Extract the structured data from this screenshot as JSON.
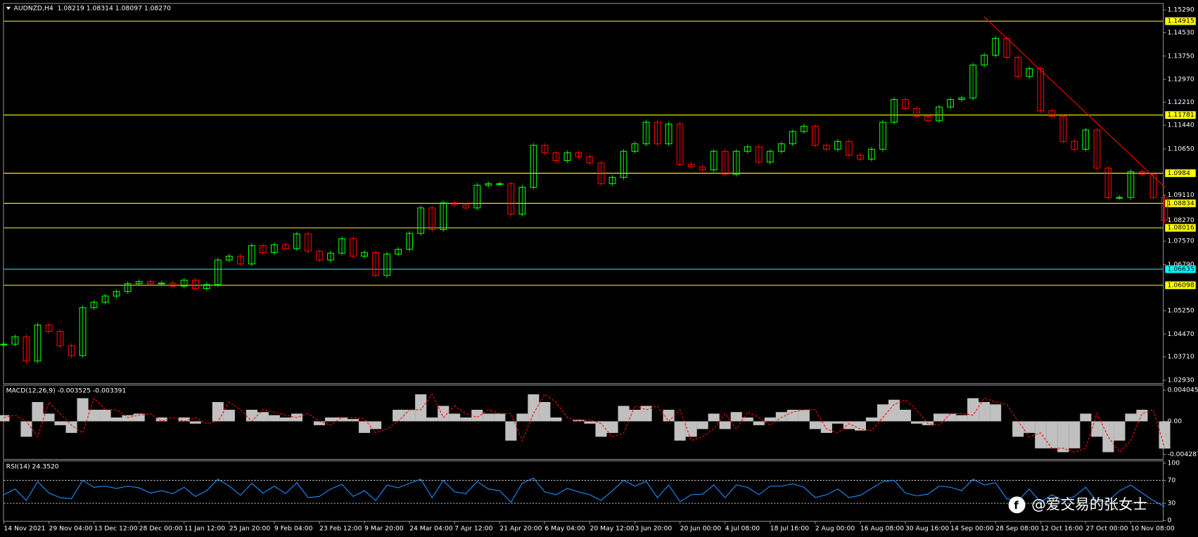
{
  "chart_data": [
    {
      "type": "candlestick",
      "title": "AUDNZD,H4  1.08219 1.08314 1.08097 1.08270",
      "up_color": "#00ff00",
      "down_color": "#ff0000",
      "categories": [
        "14 Nov 2021",
        null,
        null,
        null,
        "29 Nov 04:00",
        null,
        null,
        null,
        "13 Dec 12:00",
        null,
        null,
        null,
        "28 Dec 00:00",
        null,
        null,
        null,
        "11 Jan 12:00",
        null,
        null,
        null,
        "25 Jan 20:00",
        null,
        null,
        null,
        "9 Feb 04:00",
        null,
        null,
        null,
        "23 Feb 12:00",
        null,
        null,
        null,
        "9 Mar 20:00",
        null,
        null,
        null,
        "24 Mar 04:00",
        null,
        null,
        null,
        "7 Apr 12:00",
        null,
        null,
        null,
        "21 Apr 20:00",
        null,
        null,
        null,
        "6 May 04:00",
        null,
        null,
        null,
        "20 May 12:00",
        null,
        null,
        null,
        "3 Jun 20:00",
        null,
        null,
        null,
        "20 Jun 00:00",
        null,
        null,
        null,
        "4 Jul 08:00",
        null,
        null,
        null,
        "18 Jul 16:00",
        null,
        null,
        null,
        "2 Aug 00:00",
        null,
        null,
        null,
        "16 Aug 08:00",
        null,
        null,
        null,
        "30 Aug 16:00",
        null,
        null,
        null,
        "14 Sep 00:00",
        null,
        null,
        null,
        "28 Sep 08:00",
        null,
        null,
        null,
        "12 Oct 16:00",
        null,
        null,
        null,
        "27 Oct 00:00",
        null,
        null,
        null,
        "10 Nov 08:00",
        null,
        null,
        null
      ],
      "values": [
        1.0413,
        1.0438,
        1.0357,
        1.0477,
        1.0456,
        1.0408,
        1.0375,
        1.0535,
        1.0553,
        1.0574,
        1.0589,
        1.0615,
        1.0622,
        1.0615,
        1.0617,
        1.0607,
        1.0627,
        1.0599,
        1.0612,
        1.0694,
        1.0707,
        1.0681,
        1.0742,
        1.0719,
        1.0745,
        1.0732,
        1.0781,
        1.0724,
        1.0694,
        1.0717,
        1.0765,
        1.0707,
        1.0719,
        1.0643,
        1.0714,
        1.073,
        1.0783,
        1.0868,
        1.0796,
        1.0885,
        1.0878,
        1.0868,
        1.0944,
        1.0949,
        1.0949,
        1.0847,
        1.0937,
        1.1077,
        1.1052,
        1.1026,
        1.1052,
        1.1039,
        1.1018,
        1.0949,
        1.097,
        1.1057,
        1.1082,
        1.1154,
        1.1082,
        1.1148,
        1.1013,
        1.1005,
        1.0995,
        1.1057,
        1.098,
        1.1057,
        1.1072,
        1.1021,
        1.1057,
        1.1082,
        1.1123,
        1.1141,
        1.1077,
        1.1064,
        1.109,
        1.1044,
        1.1031,
        1.1064,
        1.1154,
        1.123,
        1.12,
        1.1174,
        1.1159,
        1.1205,
        1.123,
        1.1235,
        1.1345,
        1.1378,
        1.1434,
        1.1371,
        1.1307,
        1.1333,
        1.1192,
        1.1174,
        1.109,
        1.1064,
        1.1128,
        1.1001,
        1.0903,
        1.0903,
        1.0989,
        1.098,
        1.0903,
        1.0827
      ],
      "ylim": [
        1.02802,
        1.15494
      ],
      "yticks": [
        {
          "value": 1.1529,
          "label": "1.15290"
        },
        {
          "value": 1.1453,
          "label": "1.14530"
        },
        {
          "value": 1.1375,
          "label": "1.13750"
        },
        {
          "value": 1.1297,
          "label": "1.12970"
        },
        {
          "value": 1.1221,
          "label": "1.12210"
        },
        {
          "value": 1.1144,
          "label": "1.11440"
        },
        {
          "value": 1.1065,
          "label": "1.10650"
        },
        {
          "value": 1.0911,
          "label": "1.09110"
        },
        {
          "value": 1.0757,
          "label": "1.07570"
        },
        {
          "value": 1.0679,
          "label": "1.06790"
        },
        {
          "value": 1.0525,
          "label": "1.05250"
        },
        {
          "value": 1.0447,
          "label": "1.04470"
        },
        {
          "value": 1.0371,
          "label": "1.03710"
        },
        {
          "value": 1.0293,
          "label": "1.02930"
        }
      ],
      "current_price": {
        "value": 1.0827,
        "label": "1.08270"
      },
      "levels": [
        {
          "value": 1.14915,
          "color": "#ffff00"
        },
        {
          "value": 1.11781,
          "color": "#ffff00"
        },
        {
          "value": 1.0984,
          "color": "#ffff00"
        },
        {
          "value": 1.08834,
          "color": "#ffff00"
        },
        {
          "value": 1.08016,
          "color": "#ffff00"
        },
        {
          "value": 1.06635,
          "color": "#00ffff"
        },
        {
          "value": 1.06098,
          "color": "#ffff00"
        }
      ]
    },
    {
      "type": "bar",
      "title": "MACD(12,26,9) -0.003525 -0.003391",
      "color": "#c0c0c0",
      "signal_color": "#ff0000",
      "values": [
        0.0008,
        0,
        -0.002,
        0.0025,
        0.001,
        -0.0005,
        -0.0015,
        0.003,
        0.0015,
        0.0015,
        0.0005,
        0.0008,
        0.001,
        0,
        0.0005,
        0,
        0.0005,
        -0.0003,
        0,
        0.0025,
        0.0015,
        0,
        0.0015,
        0.0012,
        0.0008,
        0.0005,
        0.001,
        0,
        -0.0005,
        0.0005,
        0.0005,
        0.0003,
        -0.0015,
        -0.001,
        0,
        0.0015,
        0.0015,
        0.0035,
        0.0005,
        0.002,
        0.001,
        0.0005,
        0.0015,
        0.001,
        0.001,
        -0.0025,
        0.001,
        0.0035,
        0.0025,
        0.0005,
        0,
        0.0002,
        -0.0003,
        -0.002,
        -0.0015,
        0.002,
        0.0015,
        0.002,
        0,
        0.0015,
        -0.0025,
        -0.002,
        -0.001,
        0.001,
        -0.001,
        0.0012,
        0.0005,
        -0.0005,
        0.0005,
        0.0012,
        0.0015,
        0.0015,
        -0.001,
        -0.0015,
        -0.0003,
        -0.001,
        -0.0012,
        0.0005,
        0.0022,
        0.0028,
        0.0015,
        -0.0003,
        -0.0005,
        0.001,
        0.001,
        0.0008,
        0.003,
        0.0025,
        0.0022,
        0,
        -0.002,
        -0.0015,
        -0.0035,
        -0.0035,
        -0.004,
        -0.0035,
        0.001,
        -0.002,
        -0.004,
        -0.0025,
        0.001,
        0.0015,
        0,
        -0.003525
      ],
      "signal": [
        0.0005,
        0.0008,
        0,
        -0.002,
        0.0025,
        0.001,
        -0.0005,
        -0.0015,
        0.003,
        0.0015,
        0.0015,
        0.0005,
        0.0008,
        0.001,
        0,
        0.0005,
        0,
        0.0005,
        -0.0003,
        0,
        0.0025,
        0.0015,
        0,
        0.0015,
        0.0012,
        0.0008,
        0.0005,
        0.001,
        0,
        -0.0005,
        0.0005,
        0.0005,
        0.0003,
        -0.0015,
        -0.001,
        0,
        0.0015,
        0.0015,
        0.0035,
        0.0005,
        0.002,
        0.001,
        0.0005,
        0.0015,
        0.001,
        0.001,
        -0.0025,
        0.001,
        0.0035,
        0.0025,
        0.0005,
        0,
        0.0002,
        -0.0003,
        -0.002,
        -0.0015,
        0.002,
        0.0015,
        0.002,
        0,
        0.0015,
        -0.0025,
        -0.002,
        -0.001,
        0.001,
        -0.001,
        0.0012,
        0.0005,
        -0.0005,
        0.0005,
        0.0012,
        0.0015,
        0.0015,
        -0.001,
        -0.0015,
        -0.0003,
        -0.001,
        -0.0012,
        0.0005,
        0.0022,
        0.0028,
        0.0015,
        -0.0003,
        -0.0005,
        0.001,
        0.001,
        0.0008,
        0.003,
        0.0025,
        0.0022,
        0,
        -0.002,
        -0.0015,
        -0.0035,
        -0.0035,
        -0.004,
        -0.0035,
        0.001,
        -0.002,
        -0.004,
        -0.0025,
        0.001,
        0.0015,
        -0.003391
      ],
      "ylim": [
        -0.00488,
        0.00474
      ],
      "yticks": [
        0.004045,
        {
          "value": 0,
          "label": "0.00"
        },
        -0.004287
      ]
    },
    {
      "type": "line",
      "title": "RSI(14) 24.3520",
      "color": "#1e90ff",
      "values": [
        45,
        55,
        35,
        68,
        48,
        40,
        38,
        70,
        58,
        60,
        56,
        60,
        57,
        48,
        52,
        47,
        58,
        42,
        52,
        72,
        60,
        44,
        65,
        48,
        60,
        47,
        66,
        40,
        42,
        55,
        63,
        42,
        52,
        35,
        62,
        57,
        65,
        72,
        40,
        70,
        50,
        47,
        68,
        55,
        52,
        32,
        65,
        74,
        50,
        45,
        56,
        50,
        45,
        35,
        52,
        70,
        60,
        68,
        40,
        62,
        33,
        45,
        46,
        62,
        40,
        62,
        58,
        45,
        60,
        60,
        64,
        58,
        40,
        45,
        55,
        40,
        44,
        56,
        68,
        70,
        48,
        43,
        46,
        60,
        58,
        52,
        72,
        62,
        66,
        38,
        35,
        55,
        32,
        45,
        35,
        42,
        58,
        33,
        34,
        52,
        62,
        48,
        35,
        24.352
      ],
      "ylim": [
        0,
        100
      ],
      "yticks": [
        100,
        70,
        30,
        0
      ],
      "levels": [
        70,
        30
      ]
    }
  ],
  "watermark": "@爱交易的张女士"
}
